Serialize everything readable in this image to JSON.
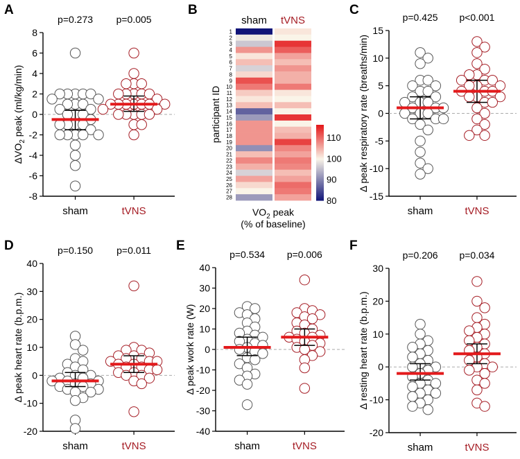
{
  "colors": {
    "sham": "#555555",
    "tvns": "#a51c24",
    "median": "#e31a1c",
    "axis": "#000000",
    "zero": "#aaaaaa"
  },
  "chart_data": [
    {
      "panel": "A",
      "type": "scatter",
      "ylabel_parts": [
        "ΔVO",
        "2",
        " peak (ml/kg/min)"
      ],
      "ylim": [
        -8,
        8
      ],
      "yticks": [
        -8,
        -6,
        -4,
        -2,
        0,
        2,
        4,
        6,
        8
      ],
      "categories": [
        "sham",
        "tVNS"
      ],
      "pvalues": [
        "p=0.273",
        "p=0.005"
      ],
      "series": [
        {
          "name": "sham",
          "median": -0.5,
          "iqr": [
            -1.5,
            0.4
          ],
          "values": [
            6,
            2,
            2,
            2,
            2,
            2,
            1.5,
            1.5,
            1,
            1,
            1,
            0.5,
            0.5,
            0,
            0,
            0,
            -0.5,
            -1,
            -1,
            -1,
            -1,
            -1.5,
            -2,
            -2,
            -2,
            -2,
            -2,
            -3,
            -4,
            -5,
            -7
          ]
        },
        {
          "name": "tVNS",
          "median": 1.0,
          "iqr": [
            0.3,
            1.8
          ],
          "values": [
            6,
            4,
            3,
            3,
            3,
            2,
            2,
            2,
            2,
            2,
            1.5,
            1,
            1,
            1,
            1,
            1,
            1,
            1,
            0.5,
            0.5,
            0,
            0,
            0,
            0,
            0,
            -1,
            -1,
            -2
          ]
        }
      ]
    },
    {
      "panel": "B",
      "type": "heatmap",
      "columns": [
        "sham",
        "tVNS"
      ],
      "row_label": "participant ID",
      "rows": [
        "1",
        "2",
        "3",
        "4",
        "5",
        "6",
        "7",
        "8",
        "9",
        "10",
        "11",
        "12",
        "13",
        "14",
        "15",
        "16",
        "17",
        "18",
        "19",
        "20",
        "21",
        "22",
        "23",
        "24",
        "25",
        "26",
        "27",
        "28"
      ],
      "sham": [
        80,
        99,
        96,
        107,
        101,
        104,
        97,
        102,
        112,
        109,
        103,
        101,
        104,
        87,
        92,
        107,
        107,
        107,
        107,
        91,
        104,
        108,
        105,
        97,
        106,
        102,
        100,
        92
      ],
      "tvns": [
        101,
        100,
        114,
        111,
        106,
        104,
        107,
        105,
        105,
        109,
        101,
        100,
        104,
        100,
        114,
        100,
        104,
        105,
        113,
        108,
        106,
        109,
        108,
        104,
        106,
        110,
        109,
        106
      ],
      "colorbar": {
        "min": 80,
        "max": 116,
        "ticks": [
          80,
          90,
          100,
          110
        ]
      },
      "xlabel_parts": [
        "VO",
        "2",
        " peak"
      ],
      "xlabel_line2": "(% of baseline)"
    },
    {
      "panel": "C",
      "type": "scatter",
      "ylabel": "Δ peak respiratory rate (breaths/min)",
      "ylim": [
        -15,
        15
      ],
      "yticks": [
        -15,
        -10,
        -5,
        0,
        5,
        10,
        15
      ],
      "categories": [
        "sham",
        "tVNS"
      ],
      "pvalues": [
        "p=0.425",
        "p<0.001"
      ],
      "series": [
        {
          "name": "sham",
          "median": 1.0,
          "iqr": [
            -1,
            3
          ],
          "values": [
            11,
            10,
            9,
            6,
            6,
            5,
            5,
            4,
            4,
            3,
            3,
            2,
            2,
            2,
            1,
            1,
            1,
            0,
            0,
            0,
            -1,
            -1,
            -1,
            -2,
            -3,
            -5,
            -7,
            -9,
            -10,
            -11
          ]
        },
        {
          "name": "tVNS",
          "median": 4.0,
          "iqr": [
            2,
            6
          ],
          "values": [
            13,
            12,
            11,
            9,
            8,
            7,
            7,
            6,
            6,
            6,
            5,
            5,
            5,
            4,
            4,
            4,
            3,
            3,
            3,
            2,
            2,
            1,
            0,
            -1,
            -2,
            -3,
            -4,
            -4
          ]
        }
      ]
    },
    {
      "panel": "D",
      "type": "scatter",
      "ylabel": "Δ peak heart rate (b.p.m.)",
      "ylim": [
        -20,
        40
      ],
      "yticks": [
        -20,
        -10,
        0,
        10,
        20,
        30,
        40
      ],
      "categories": [
        "sham",
        "tVNS"
      ],
      "pvalues": [
        "p=0.150",
        "p=0.011"
      ],
      "series": [
        {
          "name": "sham",
          "median": -2,
          "iqr": [
            -4,
            1
          ],
          "values": [
            14,
            11,
            9,
            6,
            5,
            4,
            3,
            2,
            1,
            0,
            0,
            -1,
            -1,
            -2,
            -2,
            -2,
            -3,
            -3,
            -4,
            -4,
            -5,
            -5,
            -6,
            -6,
            -8,
            -9,
            -16,
            -19
          ]
        },
        {
          "name": "tVNS",
          "median": 4,
          "iqr": [
            1,
            7
          ],
          "values": [
            32,
            10,
            9,
            9,
            8,
            7,
            7,
            6,
            6,
            5,
            5,
            5,
            4,
            4,
            3,
            3,
            2,
            2,
            1,
            1,
            0,
            0,
            -1,
            -2,
            -3,
            -13
          ]
        }
      ]
    },
    {
      "panel": "E",
      "type": "scatter",
      "ylabel": "Δ peak work rate (W)",
      "ylim": [
        -40,
        40
      ],
      "yticks": [
        -40,
        -30,
        -20,
        -10,
        0,
        10,
        20,
        30,
        40
      ],
      "categories": [
        "sham",
        "tVNS"
      ],
      "pvalues": [
        "p=0.534",
        "p=0.006"
      ],
      "series": [
        {
          "name": "sham",
          "median": 1,
          "iqr": [
            -3,
            6
          ],
          "values": [
            21,
            20,
            18,
            17,
            15,
            13,
            11,
            9,
            8,
            7,
            6,
            5,
            4,
            3,
            2,
            1,
            0,
            -1,
            -2,
            -4,
            -5,
            -7,
            -9,
            -12,
            -13,
            -15,
            -17,
            -27
          ]
        },
        {
          "name": "tVNS",
          "median": 6,
          "iqr": [
            2,
            10
          ],
          "values": [
            34,
            20,
            19,
            18,
            17,
            16,
            15,
            13,
            12,
            10,
            9,
            8,
            7,
            6,
            6,
            5,
            4,
            3,
            2,
            1,
            0,
            -1,
            -3,
            -5,
            -9,
            -19
          ]
        }
      ]
    },
    {
      "panel": "F",
      "type": "scatter",
      "ylabel": "Δ resting heart rate (b.p.m.)",
      "ylim": [
        -20,
        30
      ],
      "yticks": [
        -20,
        -10,
        0,
        10,
        20,
        30
      ],
      "categories": [
        "sham",
        "tVNS"
      ],
      "pvalues": [
        "p=0.206",
        "p=0.034"
      ],
      "series": [
        {
          "name": "sham",
          "median": -2,
          "iqr": [
            -4,
            1
          ],
          "values": [
            13,
            10,
            8,
            7,
            6,
            5,
            4,
            3,
            2,
            1,
            0,
            0,
            -1,
            -2,
            -3,
            -4,
            -5,
            -5,
            -6,
            -7,
            -8,
            -8,
            -9,
            -10,
            -11,
            -12,
            -13
          ]
        },
        {
          "name": "tVNS",
          "median": 4,
          "iqr": [
            1,
            7
          ],
          "values": [
            26,
            20,
            18,
            15,
            13,
            12,
            11,
            10,
            9,
            8,
            7,
            6,
            5,
            4,
            3,
            2,
            1,
            0,
            0,
            -1,
            -2,
            -4,
            -5,
            -7,
            -11,
            -12
          ]
        }
      ]
    }
  ]
}
